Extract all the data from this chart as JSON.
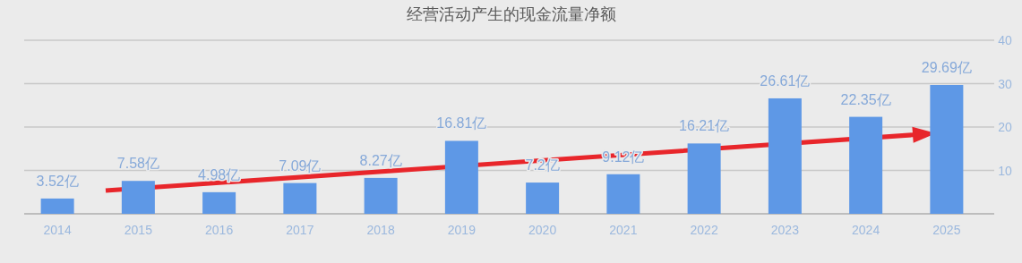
{
  "chart_data": {
    "type": "bar",
    "title": "经营活动产生的现金流量净额",
    "categories": [
      "2014",
      "2015",
      "2016",
      "2017",
      "2018",
      "2019",
      "2020",
      "2021",
      "2022",
      "2023",
      "2024",
      "2025"
    ],
    "values": [
      3.52,
      7.58,
      4.98,
      7.09,
      8.27,
      16.81,
      7.2,
      9.12,
      16.21,
      26.61,
      22.35,
      29.69
    ],
    "value_labels": [
      "3.52亿",
      "7.58亿",
      "4.98亿",
      "7.09亿",
      "8.27亿",
      "16.81亿",
      "7.2亿",
      "9.12亿",
      "16.21亿",
      "26.61亿",
      "22.35亿",
      "29.69亿"
    ],
    "color": "#5e98e6",
    "ylim": [
      0,
      40
    ],
    "yticks": [
      {
        "value": 0,
        "label": null
      },
      10,
      20,
      30,
      40
    ],
    "grid": "y",
    "legend": false
  }
}
